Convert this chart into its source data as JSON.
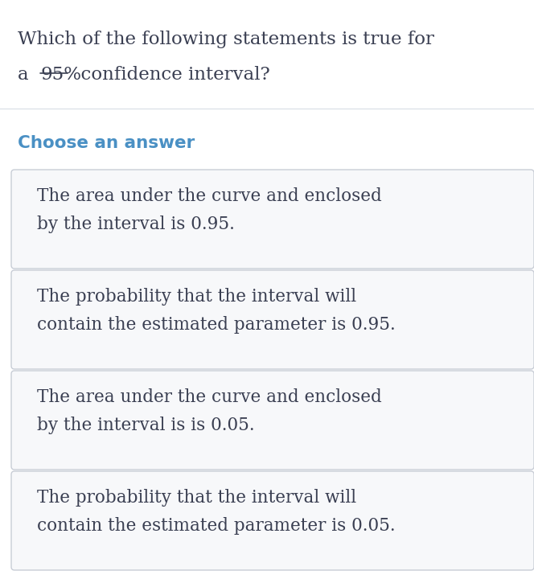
{
  "background_color": "#ffffff",
  "question_line1": "Which of the following statements is true for",
  "question_line2_pre": "a  ",
  "question_line2_strike": "95%",
  "question_line2_post": "  confidence interval?",
  "question_color": "#3a3f52",
  "question_fontsize": 16.5,
  "choose_label": "Choose an answer",
  "choose_color": "#4a90c4",
  "choose_fontsize": 15.5,
  "answers": [
    "The area under the curve and enclosed\nby the interval is 0.95.",
    "The probability that the interval will\ncontain the estimated parameter is 0.95.",
    "The area under the curve and enclosed\nby the interval is is 0.05.",
    "The probability that the interval will\ncontain the estimated parameter is 0.05."
  ],
  "answer_color": "#3a3f52",
  "answer_fontsize": 15.5,
  "box_facecolor": "#f7f8fa",
  "box_edgecolor": "#c8cdd6",
  "separator_color": "#d8dce4",
  "fig_width": 6.64,
  "fig_height": 7.3,
  "dpi": 100
}
